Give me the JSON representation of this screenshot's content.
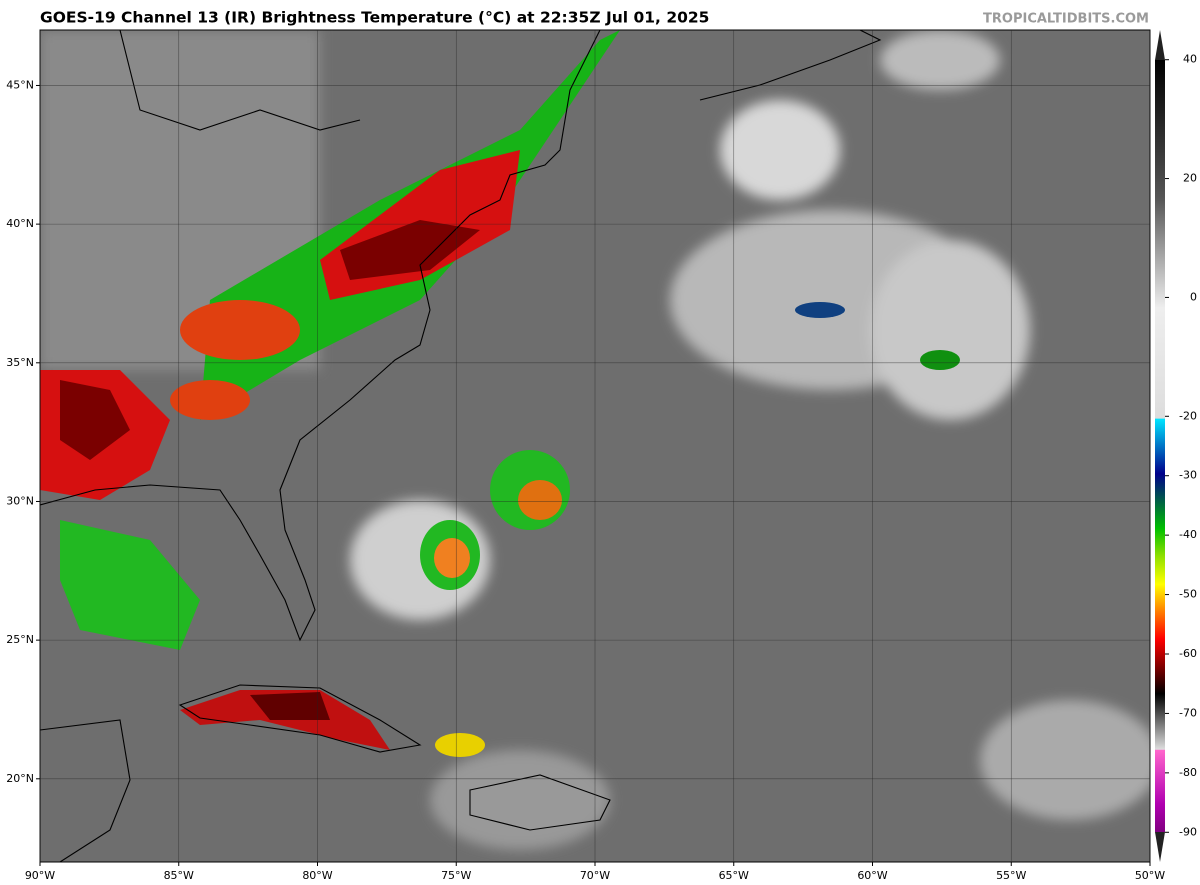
{
  "title": "GOES-19 Channel 13 (IR) Brightness Temperature (°C) at 22:35Z Jul 01, 2025",
  "credit": "TROPICALTIDBITS.COM",
  "map": {
    "lon_range": [
      -90,
      -50
    ],
    "lat_range": [
      17,
      47
    ],
    "lon_ticks": [
      {
        "value": -90,
        "label": "90°W"
      },
      {
        "value": -85,
        "label": "85°W"
      },
      {
        "value": -80,
        "label": "80°W"
      },
      {
        "value": -75,
        "label": "75°W"
      },
      {
        "value": -70,
        "label": "70°W"
      },
      {
        "value": -65,
        "label": "65°W"
      },
      {
        "value": -60,
        "label": "60°W"
      },
      {
        "value": -55,
        "label": "55°W"
      },
      {
        "value": -50,
        "label": "50°W"
      }
    ],
    "lat_ticks": [
      {
        "value": 20,
        "label": "20°N"
      },
      {
        "value": 25,
        "label": "25°N"
      },
      {
        "value": 30,
        "label": "30°N"
      },
      {
        "value": 35,
        "label": "35°N"
      },
      {
        "value": 40,
        "label": "40°N"
      },
      {
        "value": 45,
        "label": "45°N"
      }
    ]
  },
  "colorbar": {
    "range": [
      -95,
      45
    ],
    "ticks": [
      40,
      20,
      0,
      -20,
      -30,
      -40,
      -50,
      -60,
      -70,
      -80,
      -90
    ]
  }
}
